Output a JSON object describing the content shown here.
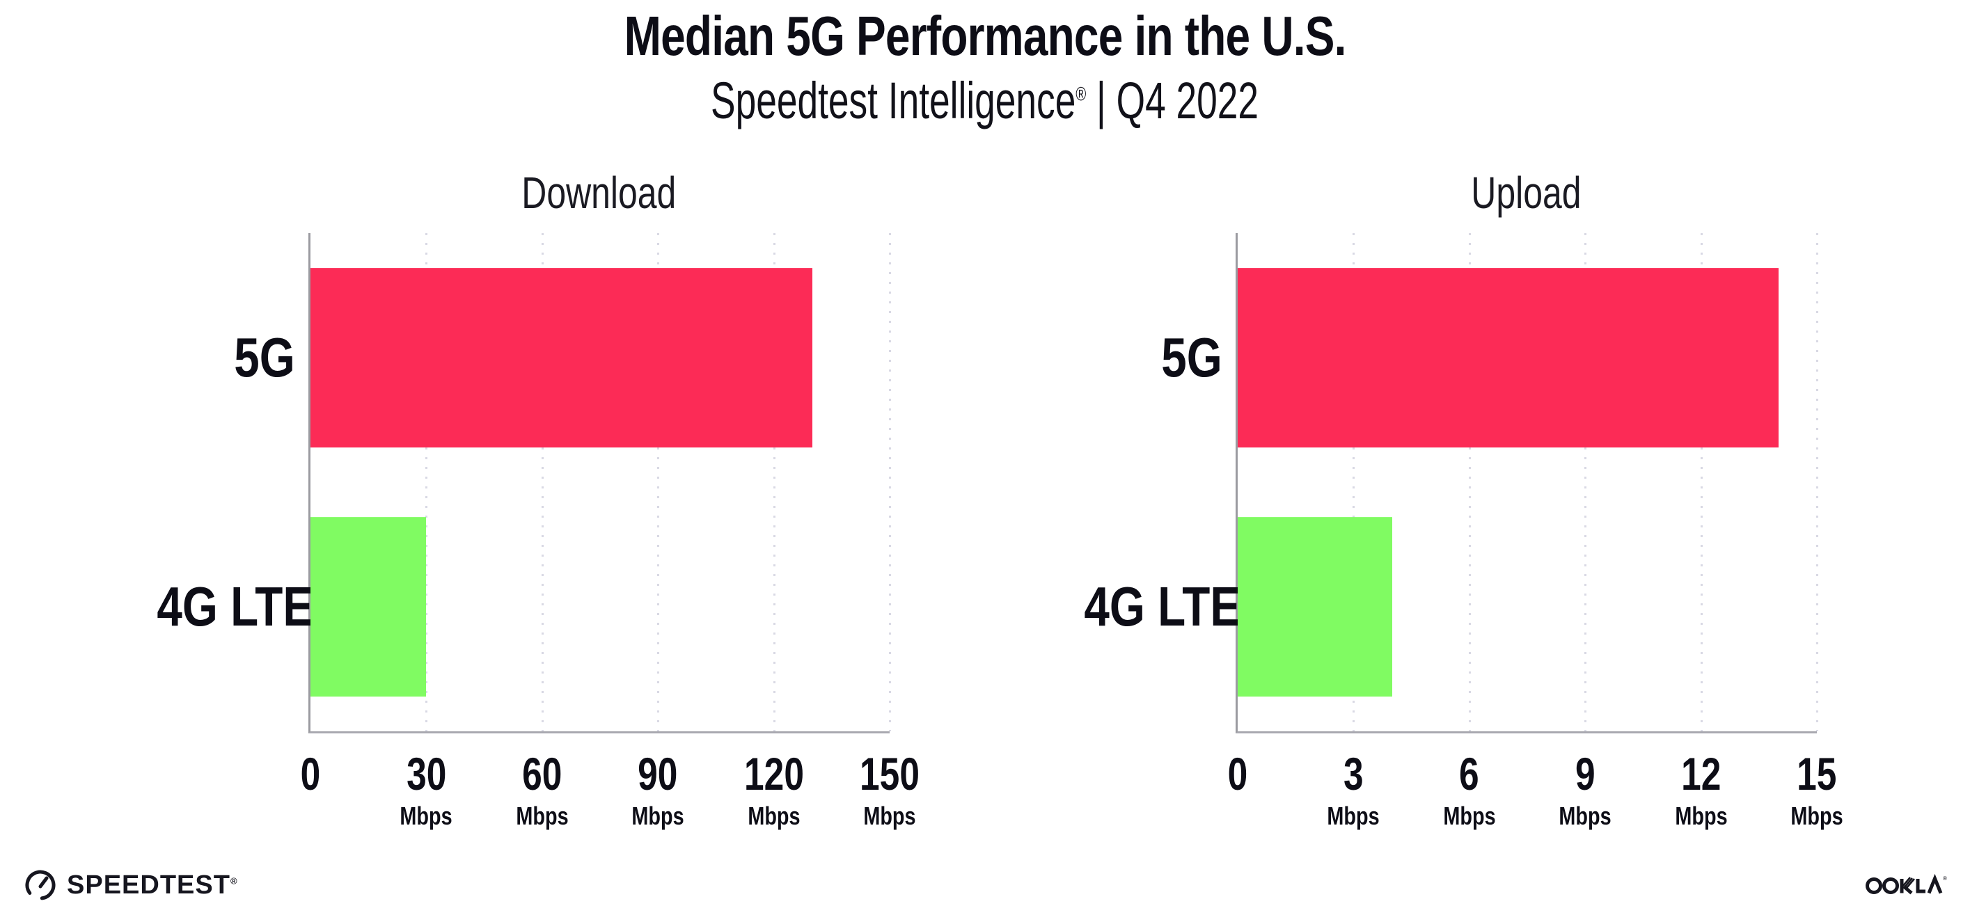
{
  "header": {
    "title": "Median 5G Performance in the U.S.",
    "subtitle_brand": "Speedtest Intelligence",
    "subtitle_reg": "®",
    "subtitle_rest": " | Q4 2022"
  },
  "chart_data": [
    {
      "type": "bar",
      "orientation": "horizontal",
      "title": "Download",
      "categories": [
        "5G",
        "4G LTE"
      ],
      "values": [
        130,
        30
      ],
      "unit": "Mbps",
      "xlim": [
        0,
        150
      ],
      "xticks": [
        0,
        30,
        60,
        90,
        120,
        150
      ],
      "bar_colors": [
        "#fc2b56",
        "#80fb62"
      ],
      "grid": "dotted-vertical"
    },
    {
      "type": "bar",
      "orientation": "horizontal",
      "title": "Upload",
      "categories": [
        "5G",
        "4G LTE"
      ],
      "values": [
        14,
        4
      ],
      "unit": "Mbps",
      "xlim": [
        0,
        15
      ],
      "xticks": [
        0,
        3,
        6,
        9,
        12,
        15
      ],
      "bar_colors": [
        "#fc2b56",
        "#80fb62"
      ],
      "grid": "dotted-vertical"
    }
  ],
  "colors": {
    "bar_5g": "#fc2b56",
    "bar_4g_lte": "#80fb62",
    "spine": "#9b9ba1",
    "gridline": "#d9d9e4",
    "text": "#0d0d16"
  },
  "footer": {
    "speedtest_label": "SPEEDTEST",
    "speedtest_reg": "®",
    "ookla_label": "OOKLA",
    "ookla_reg": "®"
  }
}
